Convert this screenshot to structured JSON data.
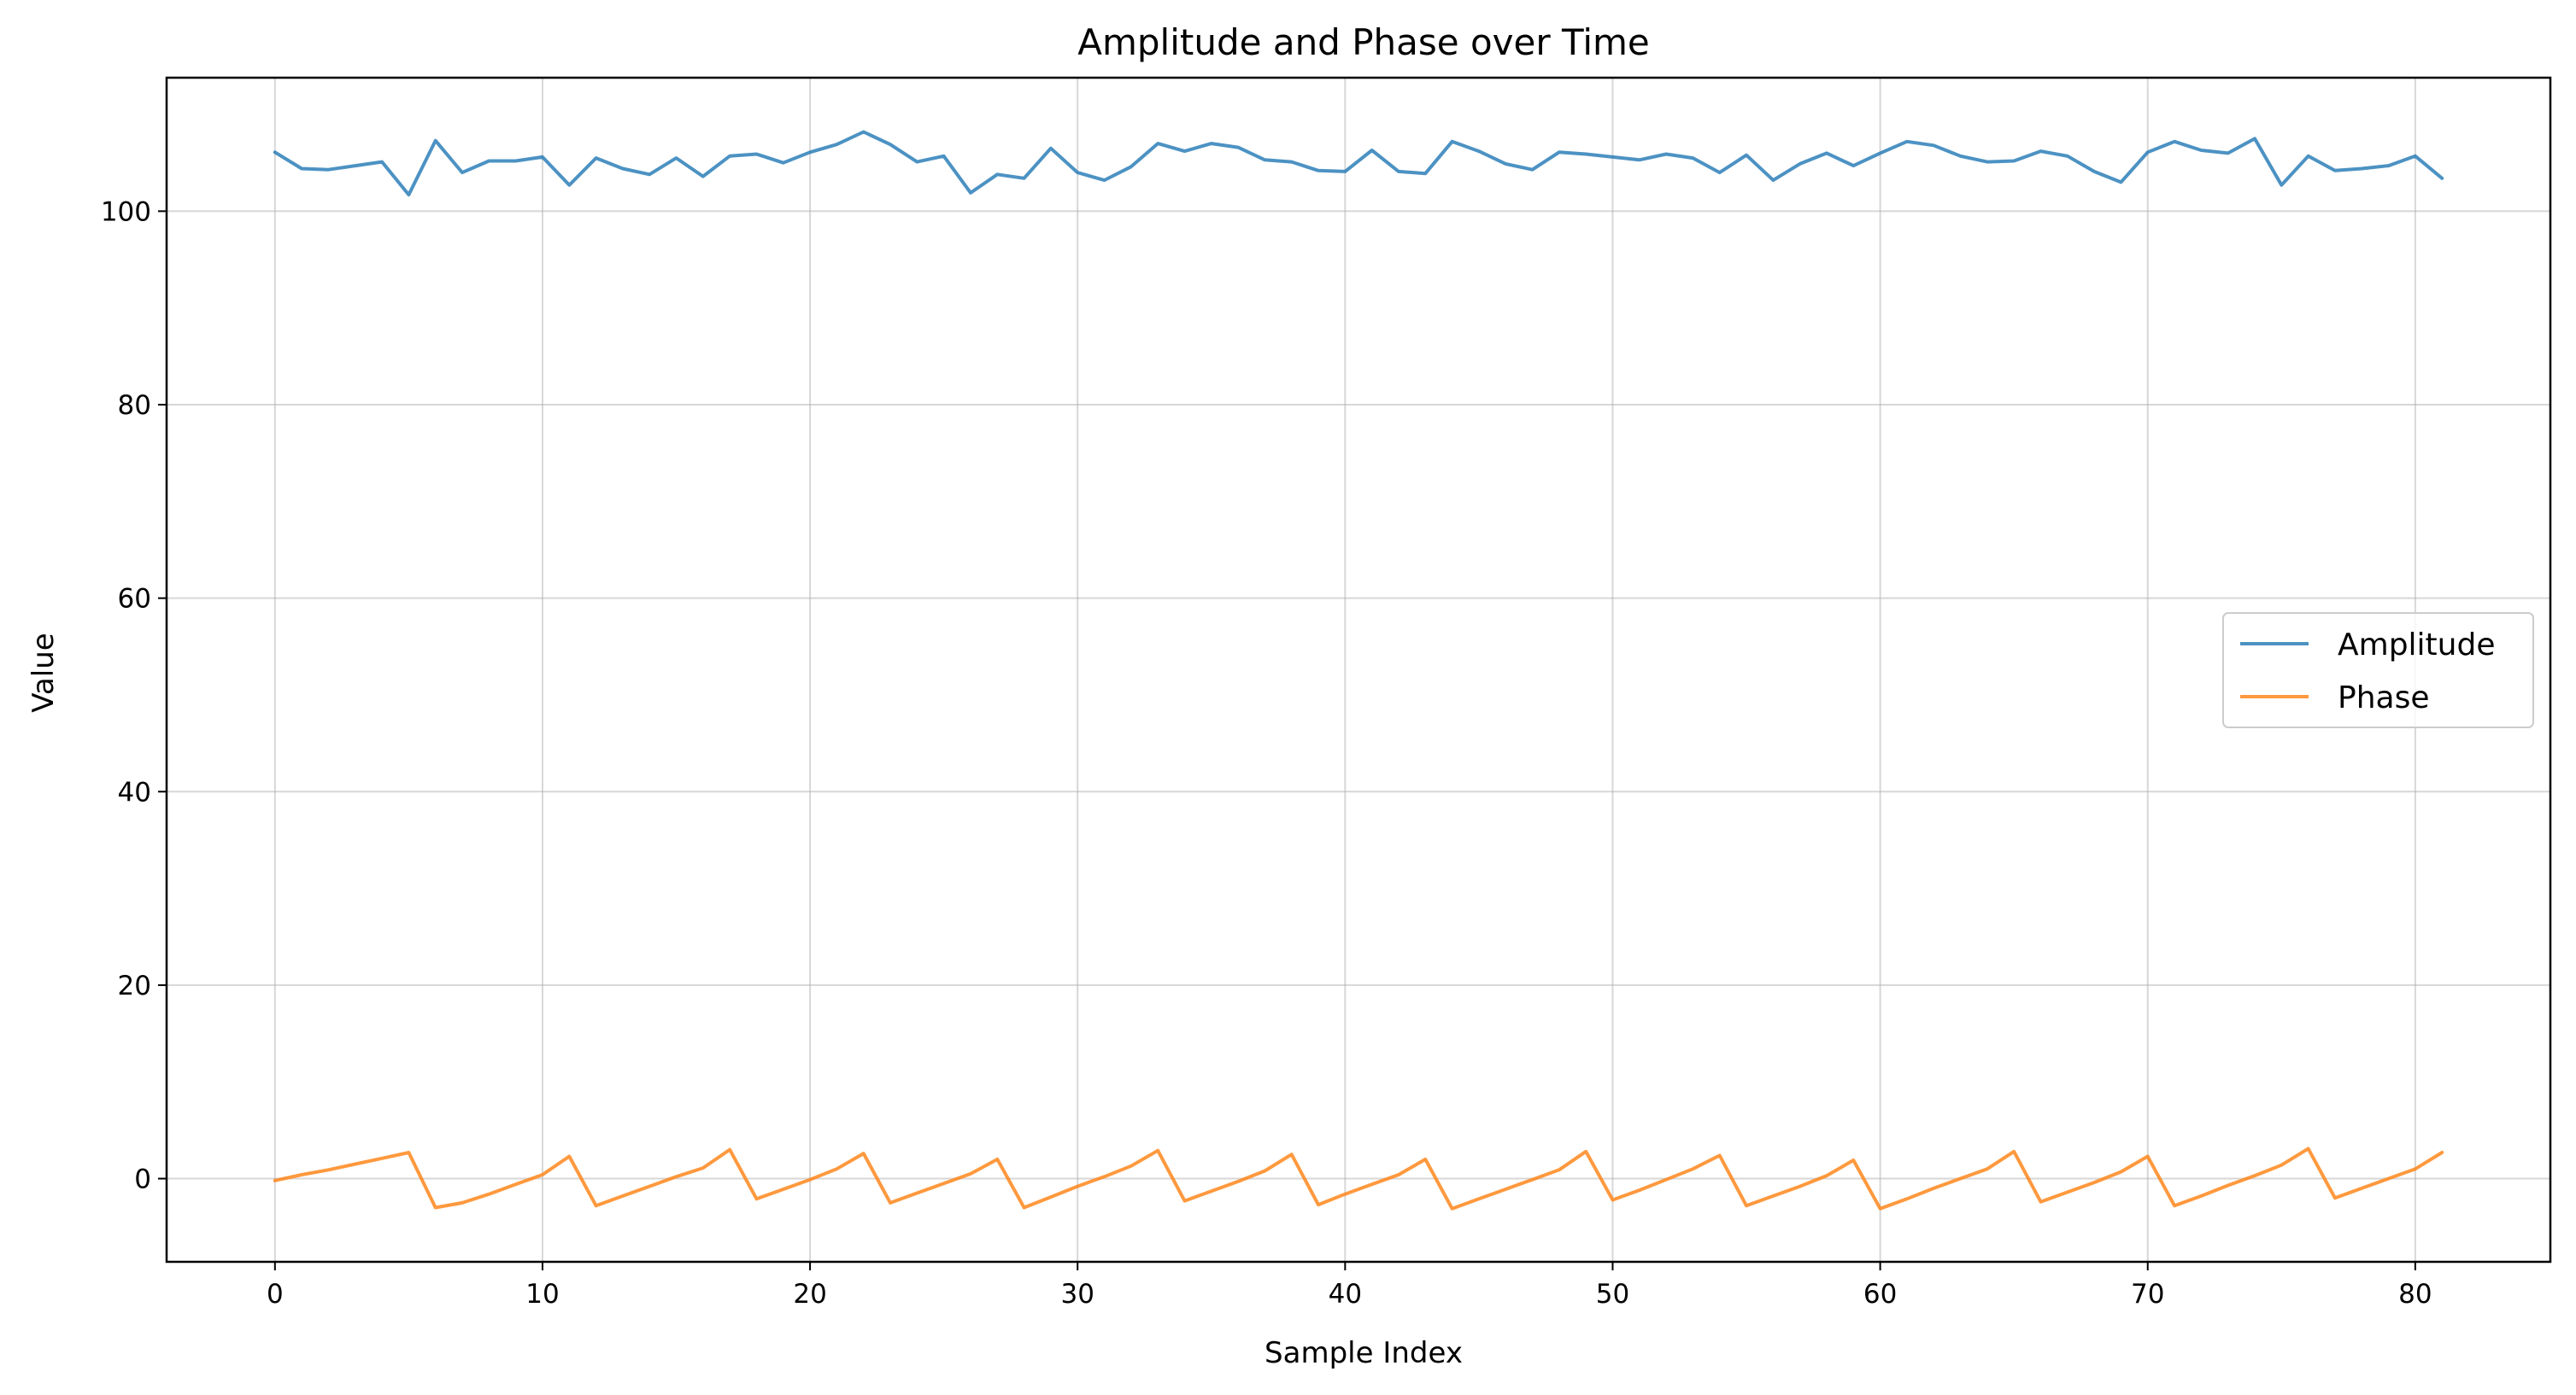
{
  "chart_data": {
    "type": "line",
    "title": "Amplitude and Phase over Time",
    "xlabel": "Sample Index",
    "ylabel": "Value",
    "xlim": [
      -4.05,
      85.05
    ],
    "ylim": [
      -8.6,
      113.8
    ],
    "xticks": [
      0,
      10,
      20,
      30,
      40,
      50,
      60,
      70,
      80
    ],
    "yticks": [
      0,
      20,
      40,
      60,
      80,
      100
    ],
    "grid": true,
    "legend_position": "center-right",
    "x": [
      0,
      1,
      2,
      3,
      4,
      5,
      6,
      7,
      8,
      9,
      10,
      11,
      12,
      13,
      14,
      15,
      16,
      17,
      18,
      19,
      20,
      21,
      22,
      23,
      24,
      25,
      26,
      27,
      28,
      29,
      30,
      31,
      32,
      33,
      34,
      35,
      36,
      37,
      38,
      39,
      40,
      41,
      42,
      43,
      44,
      45,
      46,
      47,
      48,
      49,
      50,
      51,
      52,
      53,
      54,
      55,
      56,
      57,
      58,
      59,
      60,
      61,
      62,
      63,
      64,
      65,
      66,
      67,
      68,
      69,
      70,
      71,
      72,
      73,
      74,
      75,
      76,
      77,
      78,
      79,
      80,
      81
    ],
    "series": [
      {
        "name": "Amplitude",
        "color": "#1f77b4",
        "values": [
          106.1,
          104.4,
          104.3,
          104.7,
          105.1,
          101.7,
          107.3,
          104.0,
          105.2,
          105.2,
          105.6,
          102.7,
          105.5,
          104.4,
          103.8,
          105.5,
          103.6,
          105.7,
          105.9,
          105.0,
          106.1,
          106.9,
          108.2,
          106.9,
          105.1,
          105.7,
          101.9,
          103.8,
          103.4,
          106.5,
          104.0,
          103.2,
          104.6,
          107.0,
          106.2,
          107.0,
          106.6,
          105.3,
          105.1,
          104.2,
          104.1,
          106.3,
          104.1,
          103.9,
          107.2,
          106.2,
          104.9,
          104.3,
          106.1,
          105.9,
          105.6,
          105.3,
          105.9,
          105.5,
          104.0,
          105.8,
          103.2,
          104.9,
          106.0,
          104.7,
          106.0,
          107.2,
          106.8,
          105.7,
          105.1,
          105.2,
          106.2,
          105.7,
          104.1,
          103.0,
          106.1,
          107.2,
          106.3,
          106.0,
          107.5,
          102.7,
          105.7,
          104.2,
          104.4,
          104.7,
          105.7,
          103.4
        ]
      },
      {
        "name": "Phase",
        "color": "#ff7f0e",
        "values": [
          -0.2,
          0.4,
          0.9,
          1.5,
          2.1,
          2.7,
          -3.0,
          -2.5,
          -1.6,
          -0.6,
          0.4,
          2.3,
          -2.8,
          -1.8,
          -0.8,
          0.2,
          1.1,
          3.0,
          -2.1,
          -1.1,
          -0.1,
          1.0,
          2.6,
          -2.5,
          -1.5,
          -0.5,
          0.5,
          2.0,
          -3.0,
          -1.9,
          -0.8,
          0.2,
          1.3,
          2.9,
          -2.3,
          -1.3,
          -0.3,
          0.8,
          2.5,
          -2.7,
          -1.6,
          -0.6,
          0.4,
          2.0,
          -3.1,
          -2.1,
          -1.1,
          -0.1,
          0.9,
          2.8,
          -2.2,
          -1.2,
          -0.1,
          1.0,
          2.4,
          -2.8,
          -1.8,
          -0.8,
          0.3,
          1.9,
          -3.1,
          -2.1,
          -1.0,
          0.0,
          1.0,
          2.8,
          -2.4,
          -1.4,
          -0.4,
          0.7,
          2.3,
          -2.8,
          -1.8,
          -0.7,
          0.3,
          1.4,
          3.1,
          -2.0,
          -1.0,
          0.0,
          1.0,
          2.7
        ]
      }
    ]
  }
}
